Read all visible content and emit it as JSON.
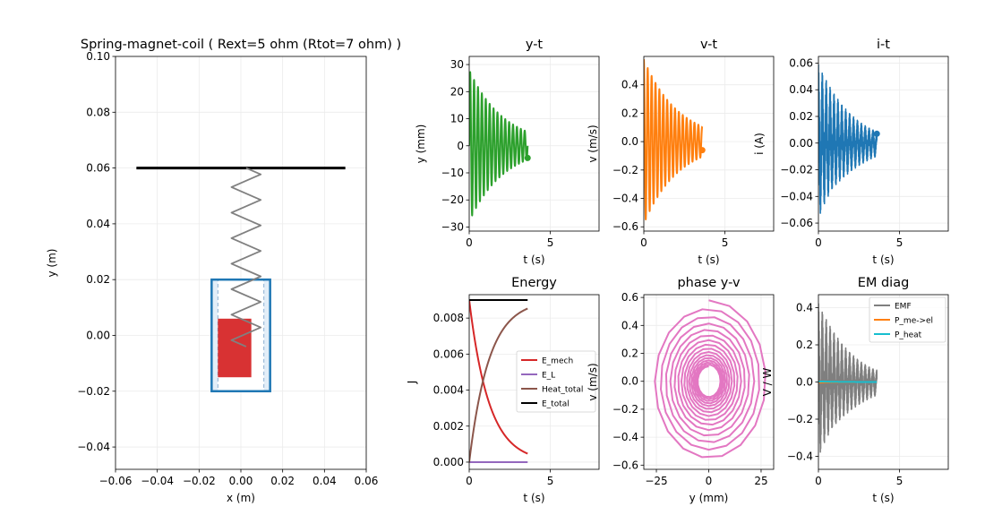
{
  "chart_data": [
    {
      "id": "scene",
      "type": "scatter",
      "title": "Spring-magnet-coil ( Rext=5 ohm (Rtot=7 ohm) )",
      "xlabel": "x (m)",
      "ylabel": "y (m)",
      "xlim": [
        -0.06,
        0.06
      ],
      "ylim": [
        -0.048,
        0.1
      ],
      "xticks": [
        -0.06,
        -0.04,
        -0.02,
        0.0,
        0.02,
        0.04,
        0.06
      ],
      "xticklabels": [
        "−0.06",
        "−0.04",
        "−0.02",
        "0.00",
        "0.02",
        "0.04",
        "0.06"
      ],
      "yticks": [
        -0.04,
        -0.02,
        0.0,
        0.02,
        0.04,
        0.06,
        0.08,
        0.1
      ],
      "yticklabels": [
        "−0.04",
        "−0.02",
        "0.00",
        "0.02",
        "0.04",
        "0.06",
        "0.08",
        "0.10"
      ],
      "ceiling": {
        "x": [
          -0.05,
          0.05
        ],
        "y": 0.06
      },
      "spring": {
        "x_center": 0.0025,
        "amplitude": 0.007,
        "y_top": 0.06,
        "y_bottom": -0.004,
        "zigzags": 14
      },
      "coil": {
        "x": [
          -0.014,
          0.014
        ],
        "y": [
          -0.02,
          0.02
        ],
        "inner_x": [
          -0.011,
          0.011
        ]
      },
      "magnet": {
        "x": [
          -0.011,
          0.005
        ],
        "y": [
          -0.015,
          0.006
        ]
      },
      "colors": {
        "spring": "#808080",
        "coil": "#1f77b4",
        "coil_fill": "#e3eef8",
        "magnet": "#d62728",
        "ceiling": "#000000"
      }
    },
    {
      "id": "y-t",
      "type": "line",
      "title": "y-t",
      "xlabel": "t (s)",
      "ylabel": "y (mm)",
      "xlim": [
        0,
        8
      ],
      "ylim": [
        -31.5,
        33
      ],
      "xticks": [
        0,
        5
      ],
      "xticklabels": [
        "0",
        "5"
      ],
      "yticks": [
        -30,
        -20,
        -10,
        0,
        10,
        20,
        30
      ],
      "yticklabels": [
        "−30",
        "−20",
        "−10",
        "0",
        "10",
        "20",
        "30"
      ],
      "series": [
        {
          "name": "y",
          "color": "#2ca02c",
          "amplitude": 28,
          "decay": 0.47,
          "period": 0.24,
          "t_end": 3.6,
          "marker_value": -4.5
        }
      ]
    },
    {
      "id": "v-t",
      "type": "line",
      "title": "v-t",
      "xlabel": "t (s)",
      "ylabel": "v (m/s)",
      "xlim": [
        0,
        8
      ],
      "ylim": [
        -0.63,
        0.6
      ],
      "xticks": [
        0,
        5
      ],
      "xticklabels": [
        "0",
        "5"
      ],
      "yticks": [
        -0.6,
        -0.4,
        -0.2,
        0.0,
        0.2,
        0.4
      ],
      "yticklabels": [
        "−0.6",
        "−0.4",
        "−0.2",
        "0.0",
        "0.2",
        "0.4"
      ],
      "series": [
        {
          "name": "v",
          "color": "#ff7f0e",
          "amplitude": 0.58,
          "decay": 0.47,
          "period": 0.24,
          "t_end": 3.6,
          "marker_value": -0.06
        }
      ]
    },
    {
      "id": "i-t",
      "type": "line",
      "title": "i-t",
      "xlabel": "t (s)",
      "ylabel": "i (A)",
      "xlim": [
        0,
        8
      ],
      "ylim": [
        -0.066,
        0.065
      ],
      "xticks": [
        0,
        5
      ],
      "xticklabels": [
        "0",
        "5"
      ],
      "yticks": [
        -0.06,
        -0.04,
        -0.02,
        0.0,
        0.02,
        0.04,
        0.06
      ],
      "yticklabels": [
        "−0.06",
        "−0.04",
        "−0.02",
        "0.00",
        "0.02",
        "0.04",
        "0.06"
      ],
      "series": [
        {
          "name": "i",
          "color": "#1f77b4",
          "amplitude": 0.06,
          "decay": 0.5,
          "period": 0.24,
          "t_end": 3.6,
          "marker_value": 0.007
        }
      ]
    },
    {
      "id": "energy",
      "type": "line",
      "title": "Energy",
      "xlabel": "t (s)",
      "ylabel": "J",
      "xlim": [
        0,
        8
      ],
      "ylim": [
        -0.0004,
        0.0093
      ],
      "xticks": [
        0,
        5
      ],
      "xticklabels": [
        "0",
        "5"
      ],
      "yticks": [
        0.0,
        0.002,
        0.004,
        0.006,
        0.008
      ],
      "yticklabels": [
        "0.000",
        "0.002",
        "0.004",
        "0.006",
        "0.008"
      ],
      "total": 0.009,
      "decay": 0.82,
      "t_end": 3.6,
      "series": [
        {
          "name": "E_mech",
          "color": "#d62728"
        },
        {
          "name": "E_L",
          "color": "#9467bd"
        },
        {
          "name": "Heat_total",
          "color": "#8c564b"
        },
        {
          "name": "E_total",
          "color": "#000000"
        }
      ],
      "legend": "center-right"
    },
    {
      "id": "phase",
      "type": "line",
      "title": "phase y-v",
      "xlabel": "y (mm)",
      "ylabel": "v (m/s)",
      "xlim": [
        -31,
        31
      ],
      "ylim": [
        -0.63,
        0.62
      ],
      "xticks": [
        -25,
        0,
        25
      ],
      "xticklabels": [
        "−25",
        "0",
        "25"
      ],
      "yticks": [
        -0.6,
        -0.4,
        -0.2,
        0.0,
        0.2,
        0.4,
        0.6
      ],
      "yticklabels": [
        "−0.6",
        "−0.4",
        "−0.2",
        "0.0",
        "0.2",
        "0.4",
        "0.6"
      ],
      "series": [
        {
          "name": "phase",
          "color": "#e377c2",
          "y_amplitude": 28,
          "v_amplitude": 0.58,
          "decay": 0.47,
          "period": 0.24,
          "t_end": 3.6
        }
      ]
    },
    {
      "id": "em",
      "type": "line",
      "title": "EM diag",
      "xlabel": "t (s)",
      "ylabel": "V / W",
      "xlim": [
        0,
        8
      ],
      "ylim": [
        -0.47,
        0.47
      ],
      "xticks": [
        0,
        5
      ],
      "xticklabels": [
        "0",
        "5"
      ],
      "yticks": [
        -0.4,
        -0.2,
        0.0,
        0.2,
        0.4
      ],
      "yticklabels": [
        "−0.4",
        "−0.2",
        "0.0",
        "0.2",
        "0.4"
      ],
      "t_end": 3.6,
      "series": [
        {
          "name": "EMF",
          "color": "#7f7f7f",
          "amplitude": 0.43,
          "decay": 0.5
        },
        {
          "name": "P_me->el",
          "color": "#ff7f0e",
          "amplitude": 0.004,
          "decay": 1.0
        },
        {
          "name": "P_heat",
          "color": "#17becf",
          "amplitude": 0.003,
          "decay": 1.0
        }
      ],
      "legend": "top-right"
    }
  ]
}
